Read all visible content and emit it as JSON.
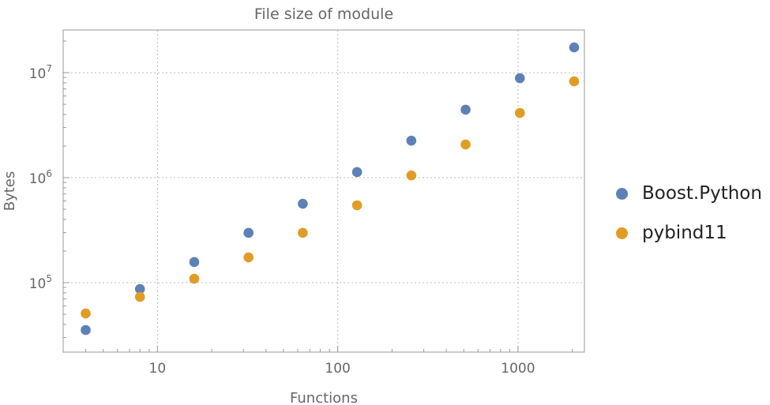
{
  "chart_data": {
    "type": "scatter",
    "title": "File size of module",
    "xlabel": "Functions",
    "ylabel": "Bytes",
    "xscale": "log",
    "yscale": "log",
    "xlim": [
      3,
      2335
    ],
    "ylim": [
      21800,
      25500000
    ],
    "grid": true,
    "legend_position": "right",
    "x_ticks": [
      {
        "value": 10,
        "label": "10"
      },
      {
        "value": 100,
        "label": "100"
      },
      {
        "value": 1000,
        "label": "1000"
      }
    ],
    "y_ticks": [
      {
        "value": 100000,
        "base": "10",
        "exp": "5"
      },
      {
        "value": 1000000,
        "base": "10",
        "exp": "6"
      },
      {
        "value": 10000000,
        "base": "10",
        "exp": "7"
      }
    ],
    "x": [
      4,
      8,
      16,
      32,
      64,
      128,
      256,
      512,
      1024,
      2048
    ],
    "series": [
      {
        "name": "Boost.Python",
        "color": "#5E81B5",
        "values": [
          35400,
          87000,
          157000,
          298000,
          565000,
          1130000,
          2250000,
          4440000,
          8860000,
          17400000
        ]
      },
      {
        "name": "pybind11",
        "color": "#E19C24",
        "values": [
          50900,
          73200,
          109000,
          174000,
          298000,
          546000,
          1050000,
          2070000,
          4140000,
          8260000
        ]
      }
    ]
  }
}
